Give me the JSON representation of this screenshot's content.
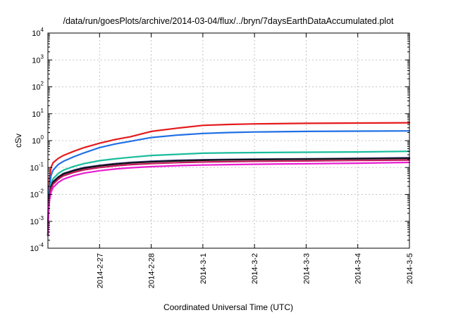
{
  "chart_data": {
    "type": "line",
    "title": "/data/run/goesPlots/archive/2014-03-04/flux/../bryn/7daysEarthDataAccumulated.plot",
    "xlabel": "Coordinated Universal Time (UTC)",
    "ylabel": "cSv",
    "yscale": "log",
    "ylim": [
      0.0001,
      10000
    ],
    "xlim": [
      0,
      7
    ],
    "xticks": [
      {
        "value": 1,
        "label": "2014-2-27"
      },
      {
        "value": 2,
        "label": "2014-2-28"
      },
      {
        "value": 3,
        "label": "2014-3-1"
      },
      {
        "value": 4,
        "label": "2014-3-2"
      },
      {
        "value": 5,
        "label": "2014-3-3"
      },
      {
        "value": 6,
        "label": "2014-3-4"
      },
      {
        "value": 7,
        "label": "2014-3-5"
      }
    ],
    "yticks": [
      {
        "value": 0.0001,
        "base": "10",
        "exp": "-4"
      },
      {
        "value": 0.001,
        "base": "10",
        "exp": "-3"
      },
      {
        "value": 0.01,
        "base": "10",
        "exp": "-2"
      },
      {
        "value": 0.1,
        "base": "10",
        "exp": "-1"
      },
      {
        "value": 1,
        "base": "10",
        "exp": "0"
      },
      {
        "value": 10,
        "base": "10",
        "exp": "1"
      },
      {
        "value": 100,
        "base": "10",
        "exp": "2"
      },
      {
        "value": 1000,
        "base": "10",
        "exp": "3"
      },
      {
        "value": 10000,
        "base": "10",
        "exp": "4"
      }
    ],
    "grid": true,
    "legend": "none",
    "series": [
      {
        "color": "#e41a1c",
        "x": [
          0,
          0.01,
          0.03,
          0.06,
          0.1,
          0.2,
          0.3,
          0.5,
          0.7,
          1,
          1.3,
          1.6,
          2,
          2.5,
          3,
          3.5,
          4,
          5,
          6,
          7
        ],
        "y": [
          0.0003,
          0.006,
          0.04,
          0.1,
          0.15,
          0.22,
          0.28,
          0.4,
          0.55,
          0.8,
          1.1,
          1.4,
          2.2,
          2.9,
          3.7,
          4.0,
          4.2,
          4.4,
          4.5,
          4.6
        ]
      },
      {
        "color": "#1f6fe5",
        "x": [
          0,
          0.01,
          0.03,
          0.06,
          0.1,
          0.2,
          0.3,
          0.5,
          0.7,
          1,
          1.3,
          1.6,
          2,
          2.5,
          3,
          3.5,
          4,
          5,
          6,
          7
        ],
        "y": [
          0.0003,
          0.004,
          0.02,
          0.05,
          0.08,
          0.13,
          0.17,
          0.25,
          0.35,
          0.55,
          0.75,
          0.95,
          1.3,
          1.6,
          1.85,
          2.0,
          2.1,
          2.2,
          2.25,
          2.3
        ]
      },
      {
        "color": "#1abc9c",
        "x": [
          0,
          0.01,
          0.03,
          0.06,
          0.1,
          0.2,
          0.3,
          0.5,
          0.7,
          1,
          1.3,
          1.6,
          2,
          2.5,
          3,
          3.5,
          4,
          5,
          6,
          7
        ],
        "y": [
          0.0003,
          0.003,
          0.012,
          0.025,
          0.038,
          0.06,
          0.08,
          0.11,
          0.14,
          0.18,
          0.21,
          0.24,
          0.28,
          0.31,
          0.34,
          0.35,
          0.36,
          0.37,
          0.38,
          0.4
        ]
      },
      {
        "color": "#3b3b8f",
        "x": [
          0,
          0.01,
          0.03,
          0.06,
          0.1,
          0.2,
          0.3,
          0.5,
          0.7,
          1,
          1.3,
          1.6,
          2,
          2.5,
          3,
          3.5,
          4,
          5,
          6,
          7
        ],
        "y": [
          0.0003,
          0.0025,
          0.01,
          0.02,
          0.03,
          0.045,
          0.06,
          0.08,
          0.1,
          0.12,
          0.14,
          0.155,
          0.17,
          0.185,
          0.195,
          0.2,
          0.205,
          0.21,
          0.22,
          0.23
        ]
      },
      {
        "color": "#111111",
        "x": [
          0,
          0.01,
          0.03,
          0.06,
          0.1,
          0.2,
          0.3,
          0.5,
          0.7,
          1,
          1.3,
          1.6,
          2,
          2.5,
          3,
          3.5,
          4,
          5,
          6,
          7
        ],
        "y": [
          0.0003,
          0.0024,
          0.0095,
          0.019,
          0.028,
          0.043,
          0.057,
          0.076,
          0.095,
          0.115,
          0.133,
          0.148,
          0.162,
          0.177,
          0.187,
          0.193,
          0.198,
          0.204,
          0.212,
          0.22
        ]
      },
      {
        "color": "#c2185b",
        "x": [
          0,
          0.01,
          0.03,
          0.06,
          0.1,
          0.2,
          0.3,
          0.5,
          0.7,
          1,
          1.3,
          1.6,
          2,
          2.5,
          3,
          3.5,
          4,
          5,
          6,
          7
        ],
        "y": [
          0.0003,
          0.002,
          0.008,
          0.016,
          0.024,
          0.037,
          0.049,
          0.066,
          0.082,
          0.1,
          0.115,
          0.128,
          0.14,
          0.152,
          0.16,
          0.165,
          0.17,
          0.176,
          0.183,
          0.19
        ]
      },
      {
        "color": "#e91ecf",
        "x": [
          0,
          0.01,
          0.03,
          0.06,
          0.1,
          0.2,
          0.3,
          0.5,
          0.7,
          1,
          1.3,
          1.6,
          2,
          2.5,
          3,
          3.5,
          4,
          5,
          6,
          7
        ],
        "y": [
          0.0003,
          0.0015,
          0.006,
          0.012,
          0.018,
          0.028,
          0.037,
          0.05,
          0.062,
          0.076,
          0.088,
          0.098,
          0.108,
          0.117,
          0.124,
          0.128,
          0.132,
          0.138,
          0.145,
          0.155
        ]
      }
    ]
  }
}
